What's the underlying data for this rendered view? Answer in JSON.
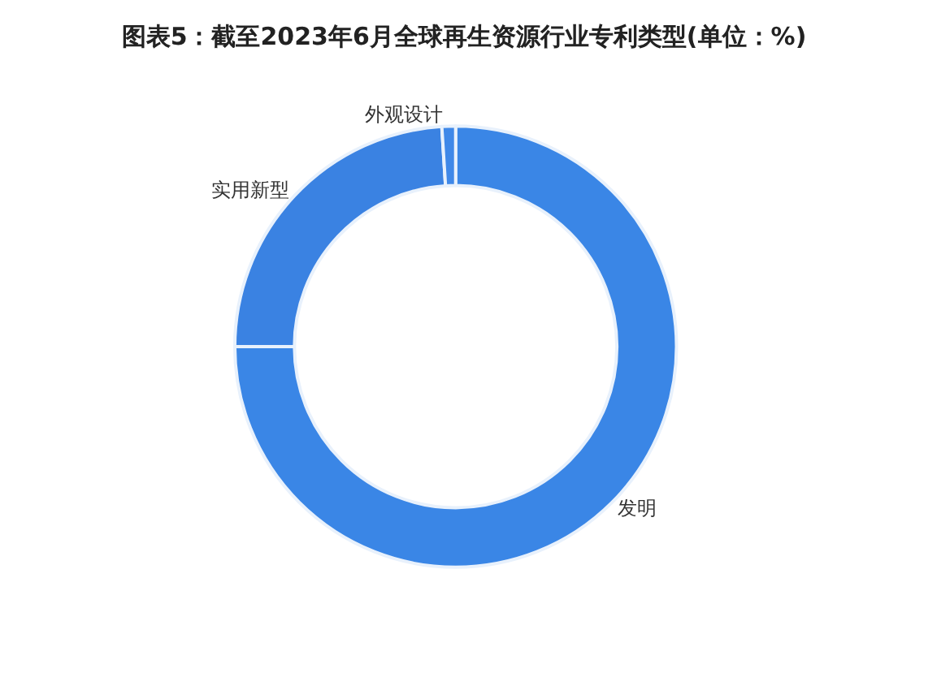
{
  "chart_data": {
    "type": "donut",
    "title": "图表5：截至2023年6月全球再生资源行业专利类型(单位：%)",
    "categories": [
      "发明",
      "实用新型",
      "外观设计"
    ],
    "values": [
      75,
      24,
      1
    ],
    "colors": [
      "#3a86e6",
      "#3a82e2",
      "#3f88e8"
    ]
  }
}
